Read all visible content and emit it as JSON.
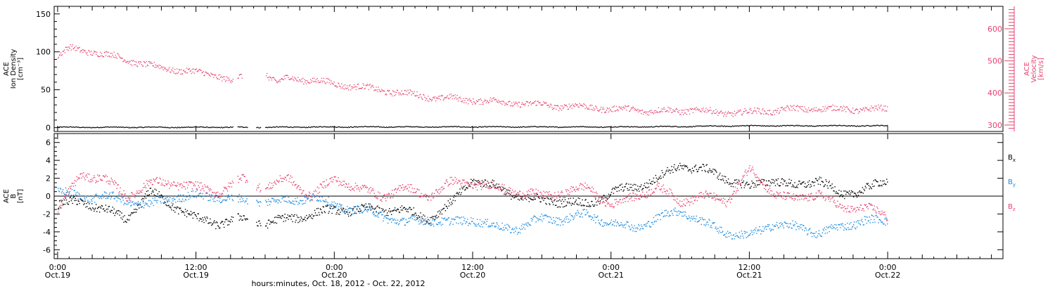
{
  "colors": {
    "axis": "#000000",
    "density": "#000000",
    "velocity": "#e8416e",
    "bx": "#000000",
    "by": "#1a8be0",
    "bz": "#e8416e"
  },
  "xaxis": {
    "range_hours": [
      -0.3,
      82
    ],
    "ticks": [
      {
        "hour": 0,
        "time": "0:00",
        "date": "Oct.19"
      },
      {
        "hour": 12,
        "time": "12:00",
        "date": "Oct.19"
      },
      {
        "hour": 24,
        "time": "0:00",
        "date": "Oct.20"
      },
      {
        "hour": 36,
        "time": "12:00",
        "date": "Oct.20"
      },
      {
        "hour": 48,
        "time": "0:00",
        "date": "Oct.21"
      },
      {
        "hour": 60,
        "time": "12:00",
        "date": "Oct.21"
      },
      {
        "hour": 72,
        "time": "0:00",
        "date": "Oct.22"
      }
    ],
    "label": "hours:minutes, Oct. 18, 2012 - Oct. 22, 2012"
  },
  "chart_data": [
    {
      "type": "scatter",
      "panel": "plasma",
      "ylabel_left": [
        "ACE",
        "Ion Density",
        "[cm⁻³]"
      ],
      "ylabel_right": [
        "ACE",
        "Velocity",
        "[km/s]"
      ],
      "ylim_left": [
        -5,
        160
      ],
      "ylim_right": [
        280,
        670
      ],
      "left_ticks": [
        "0",
        "50",
        "100",
        "150"
      ],
      "right_ticks": [
        "300",
        "400",
        "500",
        "600"
      ],
      "series": [
        {
          "axis": "left",
          "key": "density",
          "x": [
            0,
            6,
            12,
            18,
            24,
            30,
            36,
            42,
            48,
            54,
            60,
            66,
            72
          ],
          "y": [
            1,
            1,
            1,
            1,
            1.5,
            1.5,
            1.5,
            1.5,
            1.5,
            2,
            3,
            3,
            3
          ]
        },
        {
          "axis": "right",
          "key": "velocity",
          "x": [
            0,
            1,
            2,
            3,
            4,
            5,
            6,
            7,
            8,
            9,
            10,
            11,
            12,
            13,
            14,
            15,
            16,
            17,
            18,
            19,
            20,
            21,
            22,
            23,
            24,
            25,
            26,
            27,
            28,
            29,
            30,
            31,
            32,
            33,
            34,
            35,
            36,
            37,
            38,
            39,
            40,
            41,
            42,
            43,
            44,
            45,
            46,
            47,
            48,
            49,
            50,
            51,
            52,
            53,
            54,
            55,
            56,
            57,
            58,
            59,
            60,
            61,
            62,
            63,
            64,
            65,
            66,
            67,
            68,
            69,
            70,
            71,
            72
          ],
          "y": [
            515,
            540,
            535,
            530,
            520,
            515,
            505,
            495,
            485,
            480,
            475,
            470,
            465,
            460,
            455,
            440,
            450,
            null,
            460,
            430,
            450,
            445,
            440,
            435,
            430,
            425,
            420,
            415,
            410,
            405,
            400,
            395,
            390,
            385,
            385,
            380,
            380,
            375,
            375,
            370,
            370,
            365,
            365,
            360,
            360,
            360,
            355,
            355,
            350,
            350,
            350,
            345,
            345,
            345,
            345,
            350,
            345,
            340,
            340,
            340,
            340,
            345,
            345,
            350,
            350,
            350,
            355,
            350,
            350,
            350,
            350,
            350,
            350
          ]
        }
      ]
    },
    {
      "type": "scatter",
      "panel": "magnetic",
      "ylabel_left": [
        "ACE",
        "B",
        "[nT]"
      ],
      "ylim": [
        -7,
        7
      ],
      "left_ticks": [
        "-6",
        "-4",
        "-2",
        "0",
        "2",
        "4",
        "6"
      ],
      "legend": [
        {
          "key": "bx",
          "base": "B",
          "sub": "x"
        },
        {
          "key": "by",
          "base": "B",
          "sub": "y"
        },
        {
          "key": "bz",
          "base": "B",
          "sub": "z"
        }
      ],
      "series": [
        {
          "key": "bx",
          "x": [
            0,
            2,
            4,
            6,
            8,
            10,
            12,
            14,
            16,
            18,
            20,
            22,
            24,
            26,
            28,
            30,
            32,
            34,
            36,
            38,
            40,
            42,
            44,
            46,
            48,
            50,
            52,
            54,
            56,
            58,
            60,
            62,
            64,
            66,
            68,
            70,
            72
          ],
          "y": [
            -1,
            -0.5,
            -1.5,
            -2.5,
            0.5,
            -1,
            -2.5,
            -3,
            -2.5,
            -3,
            -2.5,
            -2,
            -1.5,
            -1.5,
            -1.5,
            -1.5,
            -2.5,
            -1,
            2,
            1,
            0,
            -0.5,
            -0.5,
            -1,
            0.5,
            1,
            2,
            3.5,
            3,
            2,
            1,
            2,
            1,
            2,
            0,
            1,
            1.5
          ]
        },
        {
          "key": "by",
          "x": [
            0,
            2,
            4,
            6,
            8,
            10,
            12,
            14,
            16,
            18,
            20,
            22,
            24,
            26,
            28,
            30,
            32,
            34,
            36,
            38,
            40,
            42,
            44,
            46,
            48,
            50,
            52,
            54,
            56,
            58,
            60,
            62,
            64,
            66,
            68,
            70,
            72
          ],
          "y": [
            0.5,
            0,
            0,
            -0.5,
            -1,
            0,
            0,
            0,
            -0.5,
            -0.5,
            -0.5,
            0,
            -1,
            -1.5,
            -2,
            -3,
            -2.5,
            -3,
            -2.5,
            -3.5,
            -3.5,
            -2.5,
            -2.5,
            -2,
            -3,
            -3.5,
            -2.5,
            -1.5,
            -3,
            -4,
            -4.5,
            -3,
            -3.5,
            -4,
            -3.5,
            -2.5,
            -3
          ]
        },
        {
          "key": "bz",
          "x": [
            0,
            2,
            4,
            6,
            8,
            10,
            12,
            14,
            16,
            18,
            20,
            22,
            24,
            26,
            28,
            30,
            32,
            34,
            36,
            38,
            40,
            42,
            44,
            46,
            48,
            50,
            52,
            54,
            56,
            58,
            60,
            62,
            64,
            66,
            68,
            70,
            72
          ],
          "y": [
            -1.5,
            2.5,
            2,
            0,
            1.5,
            1.5,
            1,
            0.5,
            2,
            1,
            2,
            0,
            2,
            1,
            0,
            1,
            0,
            1.5,
            1.5,
            1,
            0.5,
            0,
            0.5,
            1,
            -1,
            0,
            1,
            -0.5,
            0,
            -0.5,
            3,
            0.5,
            -0.5,
            0.5,
            -1.5,
            -1,
            -2.5
          ]
        }
      ]
    }
  ]
}
